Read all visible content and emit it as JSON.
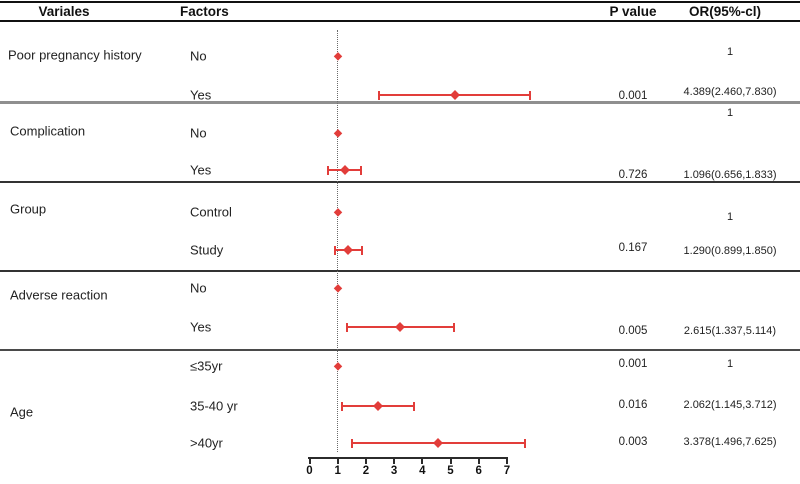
{
  "chart_data": {
    "type": "scatter",
    "subtype": "forest-plot-odds-ratios",
    "title": "",
    "xlabel": "",
    "ylabel": "",
    "columns": [
      "Variales",
      "Factors",
      "P value",
      "OR(95%-cl)"
    ],
    "x_ticks": [
      "0",
      "1",
      "2",
      "3",
      "4",
      "5",
      "6",
      "7"
    ],
    "xlim": [
      0,
      7.9
    ],
    "reference_line_x": 1,
    "grid": false,
    "legend": "none",
    "groups": [
      {
        "variable": "Poor pregnancy history",
        "rows": [
          {
            "factor": "No",
            "or": 1,
            "ci": null,
            "p": null,
            "or_label": "1"
          },
          {
            "factor": "Yes",
            "or": 4.389,
            "ci": [
              2.46,
              7.83
            ],
            "p": "0.001",
            "or_label": "4.389(2.460,7.830)"
          }
        ]
      },
      {
        "variable": "Complication",
        "rows": [
          {
            "factor": "No",
            "or": 1,
            "ci": null,
            "p": null,
            "or_label": "1"
          },
          {
            "factor": "Yes",
            "or": 1.096,
            "ci": [
              0.656,
              1.833
            ],
            "p": "0.726",
            "or_label": "1.096(0.656,1.833)"
          }
        ]
      },
      {
        "variable": "Group",
        "rows": [
          {
            "factor": "Control",
            "or": 1,
            "ci": null,
            "p": null,
            "or_label": "1"
          },
          {
            "factor": "Study",
            "or": 1.29,
            "ci": [
              0.899,
              1.85
            ],
            "p": "0.167",
            "or_label": "1.290(0.899,1.850)"
          }
        ]
      },
      {
        "variable": "Adverse reaction",
        "rows": [
          {
            "factor": "No",
            "or": 1,
            "ci": null,
            "p": null,
            "or_label": ""
          },
          {
            "factor": "Yes",
            "or": 2.615,
            "ci": [
              1.337,
              5.114
            ],
            "p": "0.005",
            "or_label": "2.615(1.337,5.114)"
          }
        ]
      },
      {
        "variable": "Age",
        "rows": [
          {
            "factor": "≤35yr",
            "or": 1,
            "ci": null,
            "p": "0.001",
            "or_label": "1"
          },
          {
            "factor": "35-40 yr",
            "or": 2.062,
            "ci": [
              1.145,
              3.712
            ],
            "p": "0.016",
            "or_label": "2.062(1.145,3.712)"
          },
          {
            "factor": ">40yr",
            "or": 3.378,
            "ci": [
              1.496,
              7.625
            ],
            "p": "0.003",
            "or_label": "3.378(1.496,7.625)"
          }
        ]
      }
    ],
    "colors": {
      "marker": "#e23d3a",
      "axis": "#2b2b2b",
      "reference_line": "#6a6a6a",
      "separator_gray": "#8f8f8f",
      "separator_dark": "#333333",
      "header_line": "#111111"
    }
  }
}
